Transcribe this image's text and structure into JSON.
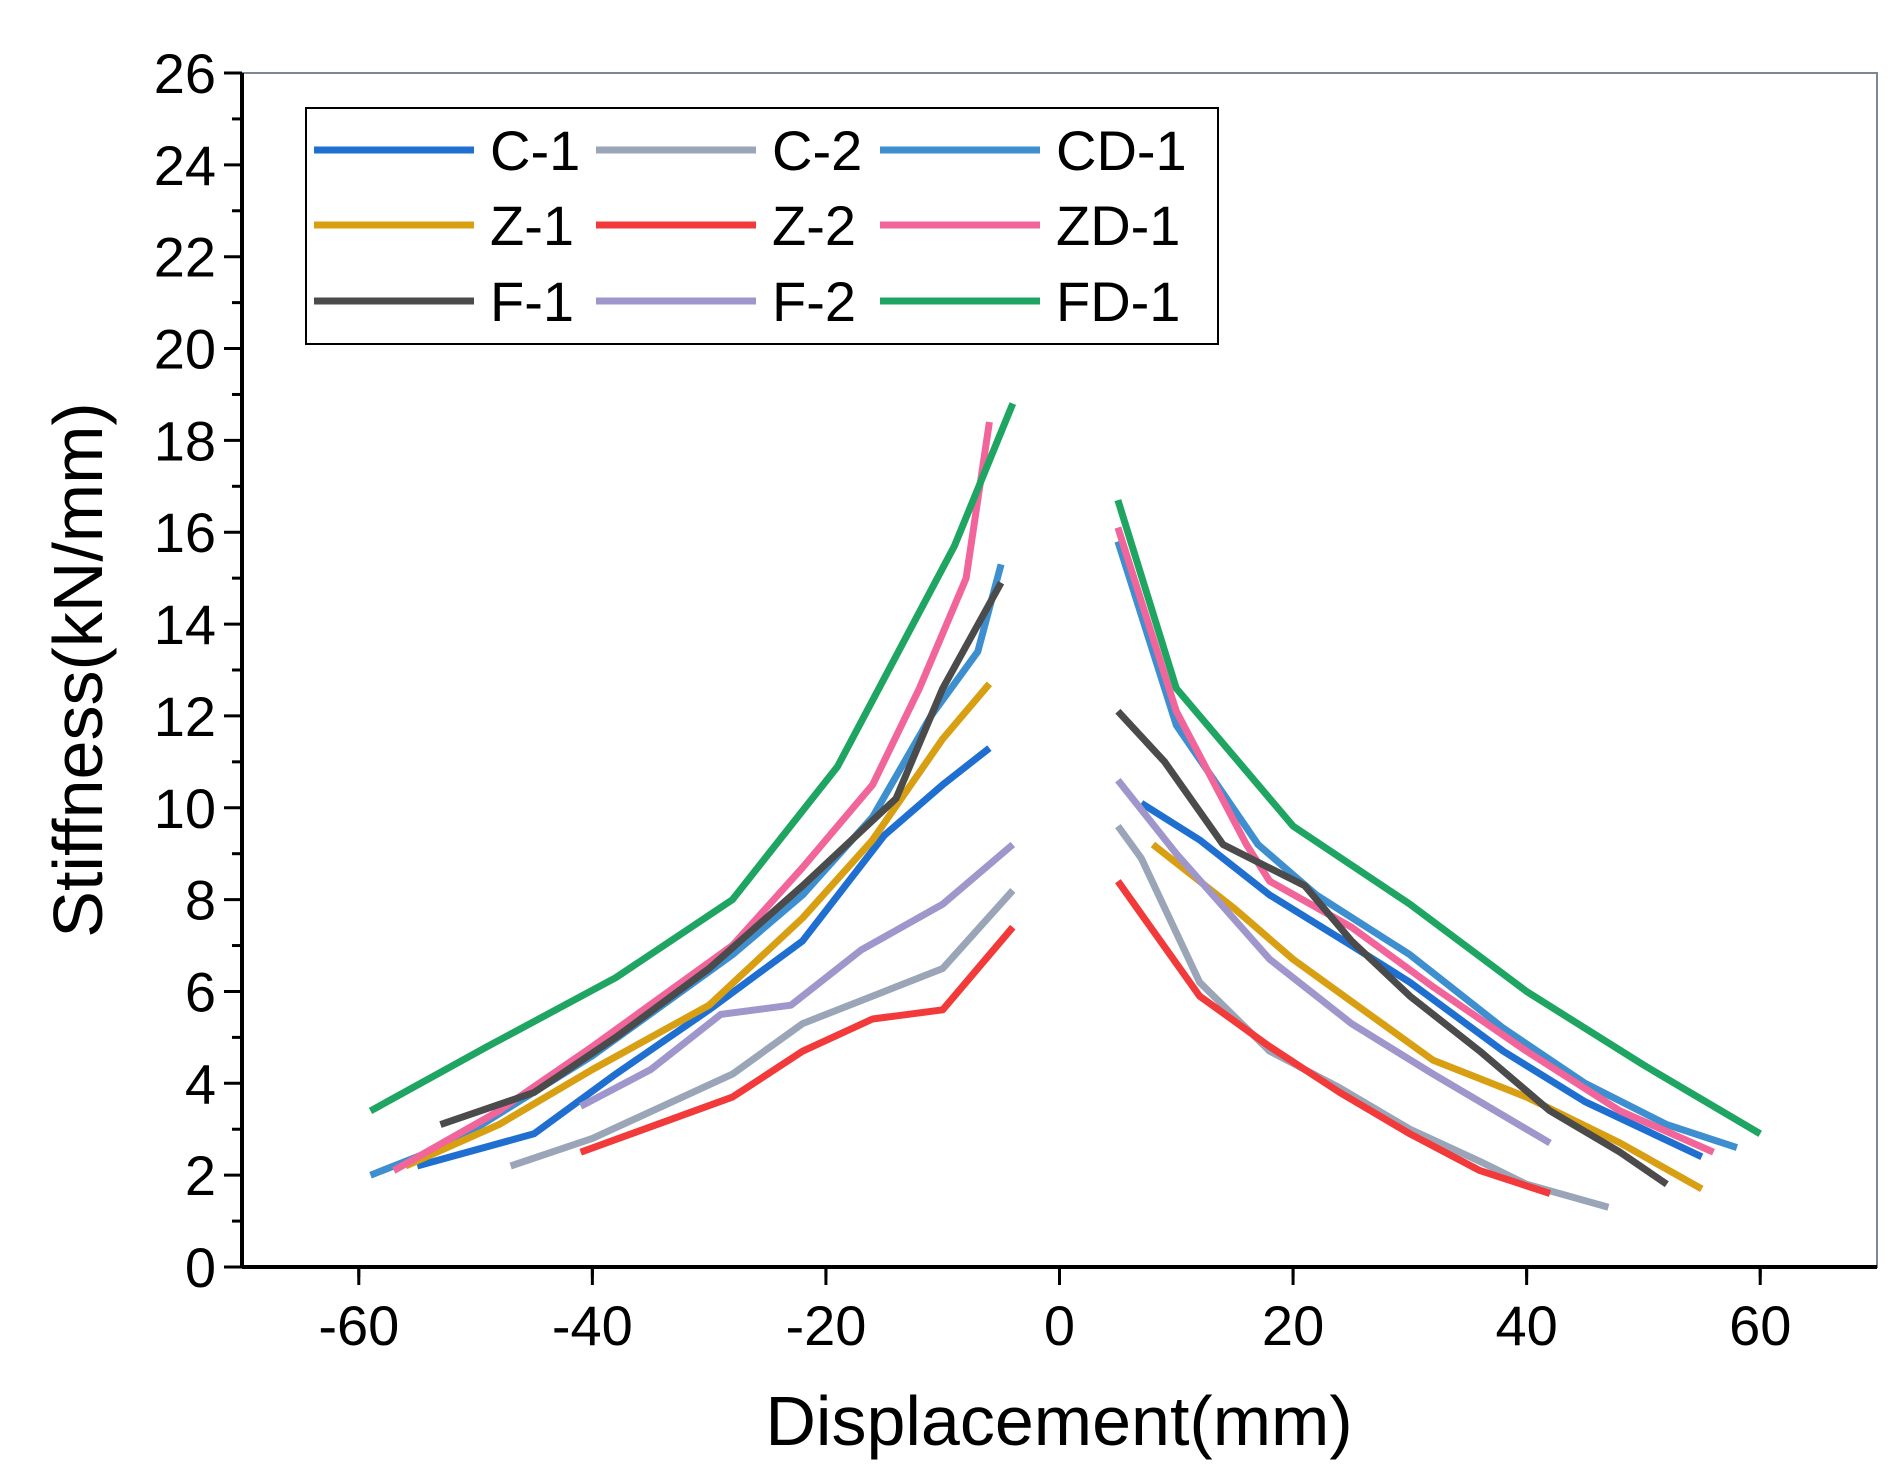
{
  "chart_data": {
    "type": "line",
    "title": "",
    "xlabel": "Displacement(mm)",
    "ylabel": "Stiffness(kN/mm)",
    "xlim": [
      -70,
      70
    ],
    "ylim": [
      0,
      26
    ],
    "xticks": [
      -60,
      -40,
      -20,
      0,
      20,
      40,
      60
    ],
    "xtick_labels": [
      "-60",
      "-40",
      "-20",
      "0",
      "20",
      "40",
      "60"
    ],
    "yticks": [
      0,
      2,
      4,
      6,
      8,
      10,
      12,
      14,
      16,
      18,
      20,
      22,
      24,
      26
    ],
    "ytick_labels": [
      "0",
      "2",
      "4",
      "6",
      "8",
      "10",
      "12",
      "14",
      "16",
      "18",
      "20",
      "22",
      "24",
      "26"
    ],
    "grid": false,
    "legend_position": "top-left",
    "legend_columns": 3,
    "series": [
      {
        "name": "C-1",
        "color": "#1f6fd1",
        "segments": [
          [
            [
              -55,
              2.2
            ],
            [
              -45,
              2.9
            ],
            [
              -38,
              4.2
            ],
            [
              -30,
              5.6
            ],
            [
              -22,
              7.1
            ],
            [
              -15,
              9.4
            ],
            [
              -10,
              10.5
            ],
            [
              -6,
              11.3
            ]
          ],
          [
            [
              7,
              10.1
            ],
            [
              12,
              9.3
            ],
            [
              18,
              8.1
            ],
            [
              25,
              7.0
            ],
            [
              30,
              6.2
            ],
            [
              38,
              4.7
            ],
            [
              45,
              3.6
            ],
            [
              55,
              2.4
            ]
          ]
        ]
      },
      {
        "name": "C-2",
        "color": "#9aa6b8",
        "segments": [
          [
            [
              -47,
              2.2
            ],
            [
              -40,
              2.8
            ],
            [
              -28,
              4.2
            ],
            [
              -22,
              5.3
            ],
            [
              -16,
              5.9
            ],
            [
              -10,
              6.5
            ],
            [
              -4,
              8.2
            ]
          ],
          [
            [
              5,
              9.6
            ],
            [
              7,
              8.9
            ],
            [
              12,
              6.2
            ],
            [
              18,
              4.7
            ],
            [
              24,
              3.9
            ],
            [
              30,
              3.0
            ],
            [
              36,
              2.3
            ],
            [
              40,
              1.8
            ],
            [
              47,
              1.3
            ]
          ]
        ]
      },
      {
        "name": "CD-1",
        "color": "#3d8fcf",
        "segments": [
          [
            [
              -59,
              2.0
            ],
            [
              -52,
              2.7
            ],
            [
              -40,
              4.6
            ],
            [
              -28,
              6.8
            ],
            [
              -22,
              8.1
            ],
            [
              -16,
              9.8
            ],
            [
              -11,
              12.0
            ],
            [
              -7,
              13.4
            ],
            [
              -5,
              15.3
            ]
          ],
          [
            [
              5,
              15.8
            ],
            [
              10,
              11.8
            ],
            [
              17,
              9.2
            ],
            [
              22,
              8.1
            ],
            [
              30,
              6.8
            ],
            [
              38,
              5.2
            ],
            [
              45,
              4.0
            ],
            [
              52,
              3.1
            ],
            [
              58,
              2.6
            ]
          ]
        ]
      },
      {
        "name": "Z-1",
        "color": "#d89f12",
        "segments": [
          [
            [
              -56,
              2.2
            ],
            [
              -48,
              3.1
            ],
            [
              -40,
              4.3
            ],
            [
              -30,
              5.7
            ],
            [
              -22,
              7.6
            ],
            [
              -16,
              9.3
            ],
            [
              -10,
              11.5
            ],
            [
              -6,
              12.7
            ]
          ],
          [
            [
              8,
              9.2
            ],
            [
              15,
              7.8
            ],
            [
              20,
              6.7
            ],
            [
              26,
              5.6
            ],
            [
              32,
              4.5
            ],
            [
              40,
              3.7
            ],
            [
              48,
              2.7
            ],
            [
              55,
              1.7
            ]
          ]
        ]
      },
      {
        "name": "Z-2",
        "color": "#f23a3a",
        "segments": [
          [
            [
              -41,
              2.5
            ],
            [
              -28,
              3.7
            ],
            [
              -22,
              4.7
            ],
            [
              -16,
              5.4
            ],
            [
              -10,
              5.6
            ],
            [
              -4,
              7.4
            ]
          ],
          [
            [
              5,
              8.4
            ],
            [
              12,
              5.9
            ],
            [
              18,
              4.8
            ],
            [
              24,
              3.8
            ],
            [
              30,
              2.9
            ],
            [
              36,
              2.1
            ],
            [
              42,
              1.6
            ]
          ]
        ]
      },
      {
        "name": "ZD-1",
        "color": "#f2659b",
        "segments": [
          [
            [
              -57,
              2.1
            ],
            [
              -48,
              3.4
            ],
            [
              -40,
              4.8
            ],
            [
              -28,
              7.0
            ],
            [
              -22,
              8.7
            ],
            [
              -16,
              10.5
            ],
            [
              -12,
              12.6
            ],
            [
              -8,
              15.0
            ],
            [
              -6,
              18.4
            ]
          ],
          [
            [
              5,
              16.1
            ],
            [
              10,
              12.1
            ],
            [
              16,
              9.2
            ],
            [
              18,
              8.4
            ],
            [
              25,
              7.4
            ],
            [
              32,
              6.1
            ],
            [
              40,
              4.7
            ],
            [
              48,
              3.4
            ],
            [
              56,
              2.5
            ]
          ]
        ]
      },
      {
        "name": "F-1",
        "color": "#4b4b4b",
        "segments": [
          [
            [
              -53,
              3.1
            ],
            [
              -45,
              3.8
            ],
            [
              -38,
              5.0
            ],
            [
              -30,
              6.5
            ],
            [
              -22,
              8.3
            ],
            [
              -14,
              10.2
            ],
            [
              -10,
              12.6
            ],
            [
              -5,
              14.9
            ]
          ],
          [
            [
              5,
              12.1
            ],
            [
              9,
              11.0
            ],
            [
              14,
              9.2
            ],
            [
              21,
              8.3
            ],
            [
              25,
              7.1
            ],
            [
              30,
              5.9
            ],
            [
              36,
              4.7
            ],
            [
              42,
              3.4
            ],
            [
              48,
              2.5
            ],
            [
              52,
              1.8
            ]
          ]
        ]
      },
      {
        "name": "F-2",
        "color": "#9f96cc",
        "segments": [
          [
            [
              -41,
              3.5
            ],
            [
              -35,
              4.3
            ],
            [
              -29,
              5.5
            ],
            [
              -23,
              5.7
            ],
            [
              -17,
              6.9
            ],
            [
              -10,
              7.9
            ],
            [
              -4,
              9.2
            ]
          ],
          [
            [
              5,
              10.6
            ],
            [
              10,
              9.0
            ],
            [
              18,
              6.7
            ],
            [
              25,
              5.3
            ],
            [
              32,
              4.2
            ],
            [
              42,
              2.7
            ]
          ]
        ]
      },
      {
        "name": "FD-1",
        "color": "#1fa562",
        "segments": [
          [
            [
              -59,
              3.4
            ],
            [
              -49,
              4.8
            ],
            [
              -38,
              6.3
            ],
            [
              -28,
              8.0
            ],
            [
              -19,
              10.9
            ],
            [
              -9,
              15.7
            ],
            [
              -4,
              18.8
            ]
          ],
          [
            [
              5,
              16.7
            ],
            [
              10,
              12.6
            ],
            [
              20,
              9.6
            ],
            [
              30,
              7.9
            ],
            [
              40,
              6.0
            ],
            [
              50,
              4.4
            ],
            [
              60,
              2.9
            ]
          ]
        ]
      }
    ]
  }
}
